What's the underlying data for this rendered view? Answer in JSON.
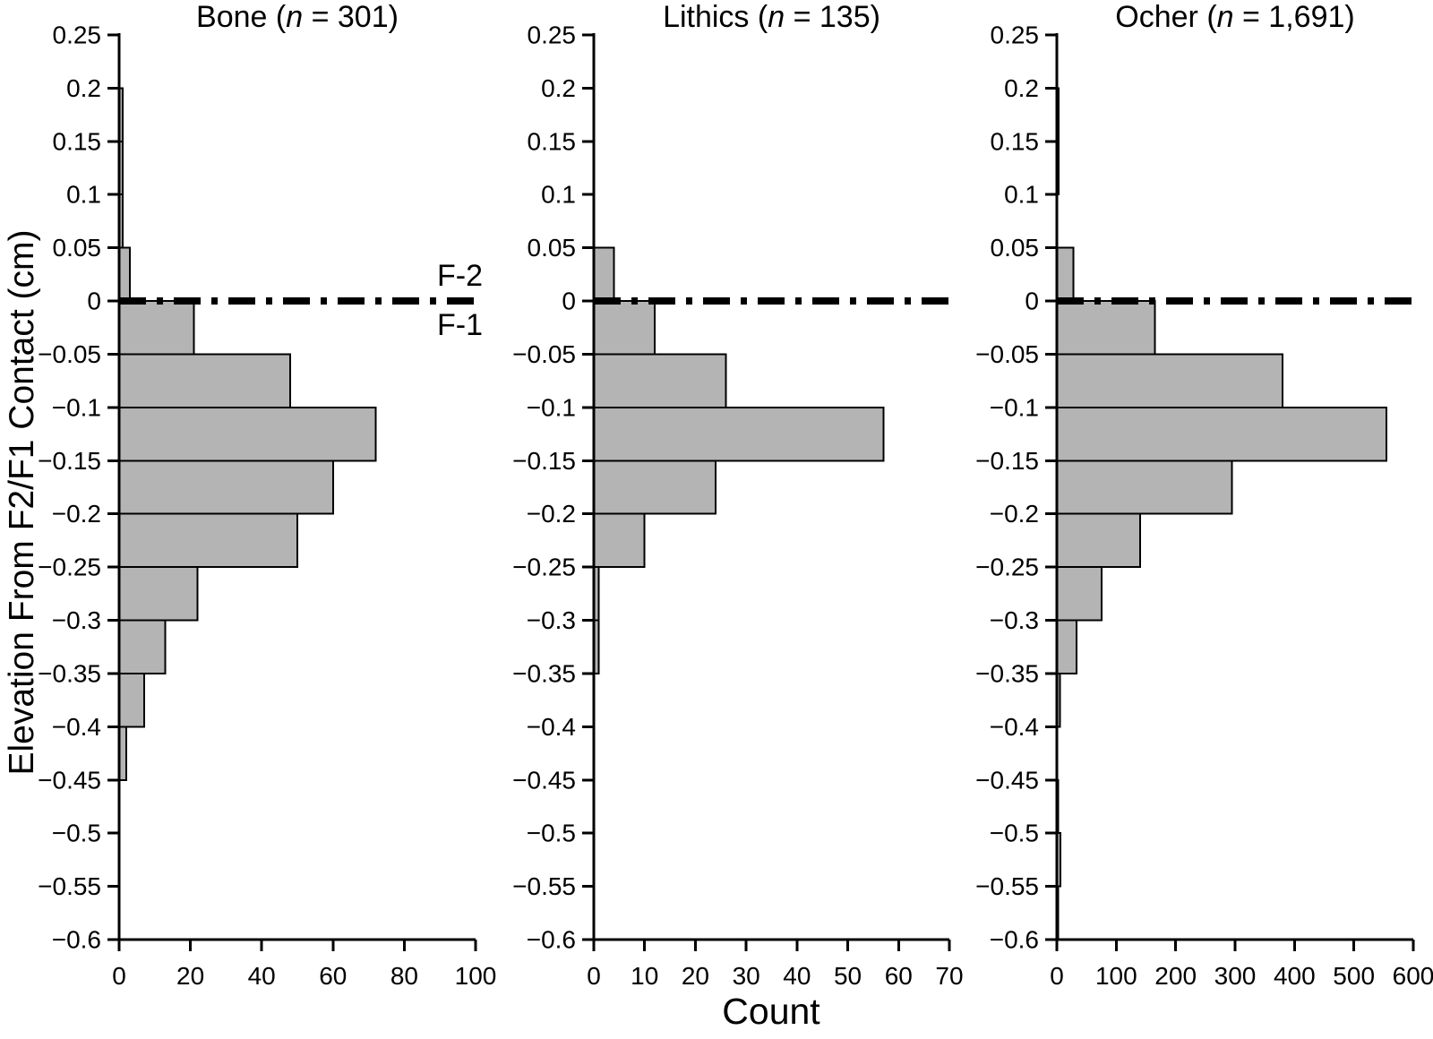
{
  "figure": {
    "ylabel": "Elevation From F2/F1 Contact (cm)",
    "xlabel": "Count",
    "contact_line_labels": {
      "above": "F-2",
      "below": "F-1"
    },
    "colors": {
      "bar_fill": "#b4b4b4",
      "bar_stroke": "#000000",
      "axis": "#000000",
      "background": "#ffffff"
    }
  },
  "chart_data": [
    {
      "type": "bar",
      "orientation": "horizontal",
      "id": "bone",
      "title": "Bone (n = 301)",
      "title_parts": [
        {
          "text": "Bone (",
          "italic": false
        },
        {
          "text": "n",
          "italic": true
        },
        {
          "text": " = 301)",
          "italic": false
        }
      ],
      "n": 301,
      "xlabel": "Count",
      "ylabel": "Elevation From F2/F1 Contact (cm)",
      "xlim": [
        0,
        100
      ],
      "xticks": [
        0,
        20,
        40,
        60,
        80,
        100
      ],
      "ylim": [
        -0.6,
        0.25
      ],
      "yticks": [
        0.25,
        0.2,
        0.15,
        0.1,
        0.05,
        0,
        -0.05,
        -0.1,
        -0.15,
        -0.2,
        -0.25,
        -0.3,
        -0.35,
        -0.4,
        -0.45,
        -0.5,
        -0.55,
        -0.6
      ],
      "bin_width": 0.05,
      "bin_edges": [
        0.25,
        0.2,
        0.15,
        0.1,
        0.05,
        0,
        -0.05,
        -0.1,
        -0.15,
        -0.2,
        -0.25,
        -0.3,
        -0.35,
        -0.4,
        -0.45,
        -0.5,
        -0.55,
        -0.6
      ],
      "counts": [
        0,
        1,
        1,
        1,
        3,
        21,
        48,
        72,
        60,
        50,
        22,
        13,
        7,
        2,
        0,
        0,
        0
      ],
      "zero_line": 0,
      "grid": false
    },
    {
      "type": "bar",
      "orientation": "horizontal",
      "id": "lithics",
      "title": "Lithics (n = 135)",
      "title_parts": [
        {
          "text": "Lithics (",
          "italic": false
        },
        {
          "text": "n",
          "italic": true
        },
        {
          "text": " = 135)",
          "italic": false
        }
      ],
      "n": 135,
      "xlabel": "Count",
      "ylabel": "Elevation From F2/F1 Contact (cm)",
      "xlim": [
        0,
        70
      ],
      "xticks": [
        0,
        10,
        20,
        30,
        40,
        50,
        60,
        70
      ],
      "ylim": [
        -0.6,
        0.25
      ],
      "yticks": [
        0.25,
        0.2,
        0.15,
        0.1,
        0.05,
        0,
        -0.05,
        -0.1,
        -0.15,
        -0.2,
        -0.25,
        -0.3,
        -0.35,
        -0.4,
        -0.45,
        -0.5,
        -0.55,
        -0.6
      ],
      "bin_width": 0.05,
      "bin_edges": [
        0.25,
        0.2,
        0.15,
        0.1,
        0.05,
        0,
        -0.05,
        -0.1,
        -0.15,
        -0.2,
        -0.25,
        -0.3,
        -0.35,
        -0.4,
        -0.45,
        -0.5,
        -0.55,
        -0.6
      ],
      "counts": [
        0,
        0,
        0,
        0,
        4,
        12,
        26,
        57,
        24,
        10,
        1,
        1,
        0,
        0,
        0,
        0,
        0
      ],
      "zero_line": 0,
      "grid": false
    },
    {
      "type": "bar",
      "orientation": "horizontal",
      "id": "ocher",
      "title": "Ocher (n = 1,691)",
      "title_parts": [
        {
          "text": "Ocher (",
          "italic": false
        },
        {
          "text": "n",
          "italic": true
        },
        {
          "text": " = 1,691)",
          "italic": false
        }
      ],
      "n": 1691,
      "xlabel": "Count",
      "ylabel": "Elevation From F2/F1 Contact (cm)",
      "xlim": [
        0,
        600
      ],
      "xticks": [
        0,
        100,
        200,
        300,
        400,
        500,
        600
      ],
      "ylim": [
        -0.6,
        0.25
      ],
      "yticks": [
        0.25,
        0.2,
        0.15,
        0.1,
        0.05,
        0,
        -0.05,
        -0.1,
        -0.15,
        -0.2,
        -0.25,
        -0.3,
        -0.35,
        -0.4,
        -0.45,
        -0.5,
        -0.55,
        -0.6
      ],
      "bin_width": 0.05,
      "bin_edges": [
        0.25,
        0.2,
        0.15,
        0.1,
        0.05,
        0,
        -0.05,
        -0.1,
        -0.15,
        -0.2,
        -0.25,
        -0.3,
        -0.35,
        -0.4,
        -0.45,
        -0.5,
        -0.55,
        -0.6
      ],
      "counts": [
        0,
        3,
        3,
        0,
        28,
        165,
        380,
        555,
        295,
        140,
        75,
        33,
        5,
        0,
        1,
        6,
        2
      ],
      "zero_line": 0,
      "grid": false
    }
  ]
}
